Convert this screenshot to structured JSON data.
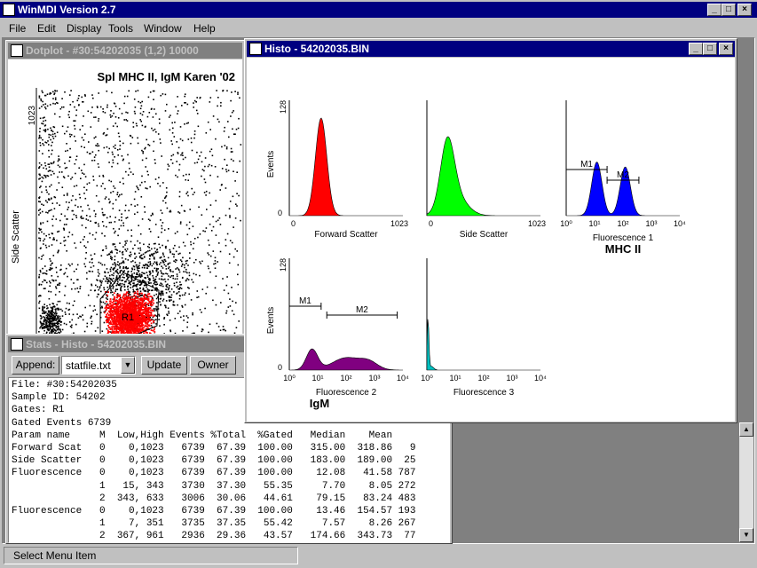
{
  "app": {
    "title": "WinMDI Version 2.7"
  },
  "menu": [
    "File",
    "Edit",
    "Display",
    "Tools",
    "Window",
    "Help"
  ],
  "dotplot": {
    "title": "Dotplot - #30:54202035 (1,2) 10000",
    "plot_title": "Spl MHC II, IgM Karen '02",
    "y_label": "Side Scatter",
    "y_tick_top": "1023",
    "region_label": "R1"
  },
  "histo": {
    "title": "Histo - 54202035.BIN",
    "panels": [
      {
        "xlabel": "Forward Scatter",
        "ylabel": "Events",
        "ymax": "128",
        "ymin": "0",
        "xmin": "0",
        "xmax": "1023",
        "color": "#ff0000"
      },
      {
        "xlabel": "Side Scatter",
        "xmin": "0",
        "xmax": "1023",
        "color": "#00ff00"
      },
      {
        "xlabel": "Fluorescence 1",
        "subtitle": "MHC II",
        "color": "#0000ff",
        "markers": [
          "M1",
          "M2"
        ],
        "ticks": [
          "10⁰",
          "10¹",
          "10²",
          "10³",
          "10⁴"
        ]
      },
      {
        "xlabel": "Fluorescence 2",
        "subtitle": "IgM",
        "ylabel": "Events",
        "ymax": "128",
        "ymin": "0",
        "color": "#800080",
        "markers": [
          "M1",
          "M2"
        ],
        "ticks": [
          "10⁰",
          "10¹",
          "10²",
          "10³",
          "10⁴"
        ]
      },
      {
        "xlabel": "Fluorescence 3",
        "color": "#00c0c0",
        "ticks": [
          "10⁰",
          "10¹",
          "10²",
          "10³",
          "10⁴"
        ]
      }
    ]
  },
  "stats": {
    "title": "Stats - Histo - 54202035.BIN",
    "append_label": "Append:",
    "file_value": "statfile.txt",
    "update_label": "Update",
    "owner_label": "Owner",
    "header_lines": [
      "File: #30:54202035",
      "Sample ID: 54202",
      "Gates: R1",
      "Gated Events 6739"
    ],
    "columns": [
      "Param name",
      "M",
      "Low,High",
      "Events",
      "%Total",
      "%Gated",
      "Median",
      "Mean",
      ""
    ],
    "rows": [
      [
        "Forward Scat",
        "0",
        "0,1023",
        "6739",
        "67.39",
        "100.00",
        "315.00",
        "318.86",
        "9"
      ],
      [
        "Side Scatter",
        "0",
        "0,1023",
        "6739",
        "67.39",
        "100.00",
        "183.00",
        "189.00",
        "25"
      ],
      [
        "Fluorescence",
        "0",
        "0,1023",
        "6739",
        "67.39",
        "100.00",
        "12.08",
        "41.58",
        "787"
      ],
      [
        "",
        "1",
        "15, 343",
        "3730",
        "37.30",
        "55.35",
        "7.70",
        "8.05",
        "272"
      ],
      [
        "",
        "2",
        "343, 633",
        "3006",
        "30.06",
        "44.61",
        "79.15",
        "83.24",
        "483"
      ],
      [
        "Fluorescence",
        "0",
        "0,1023",
        "6739",
        "67.39",
        "100.00",
        "13.46",
        "154.57",
        "193"
      ],
      [
        "",
        "1",
        "7, 351",
        "3735",
        "37.35",
        "55.42",
        "7.57",
        "8.26",
        "267"
      ],
      [
        "",
        "2",
        "367, 961",
        "2936",
        "29.36",
        "43.57",
        "174.66",
        "343.73",
        "77"
      ]
    ]
  },
  "status": {
    "text": "Select Menu Item"
  }
}
